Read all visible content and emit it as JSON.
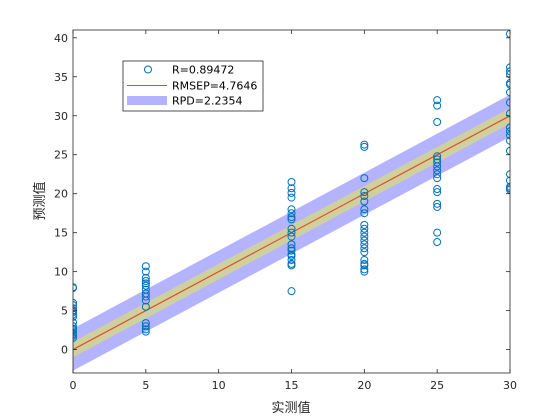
{
  "chart_data": {
    "type": "scatter",
    "xlabel": "实测值",
    "ylabel": "预测值",
    "xlim": [
      0,
      30
    ],
    "ylim": [
      -3,
      41
    ],
    "xticks": [
      0,
      5,
      10,
      15,
      20,
      25,
      30
    ],
    "yticks": [
      0,
      5,
      10,
      15,
      20,
      25,
      30,
      35,
      40
    ],
    "grid": false,
    "legend_placement": "top-left",
    "legend": [
      {
        "label": "R=0.89472",
        "kind": "marker"
      },
      {
        "label": "RMSEP=4.7646",
        "kind": "line"
      },
      {
        "label": "RPD=2.2354",
        "kind": "band"
      }
    ],
    "fit_line": {
      "x": [
        0,
        30
      ],
      "y": [
        0,
        30
      ],
      "color": "#d95319"
    },
    "band_outer": {
      "halfwidth": 2.7,
      "color": "#b3b3ff"
    },
    "band_inner": {
      "halfwidth": 1.0,
      "color": "#cfcfa0"
    },
    "marker_color": "#0072bd",
    "points": {
      "x": [
        0,
        0,
        0,
        0,
        0,
        0,
        0,
        0,
        0,
        0,
        0,
        0,
        0,
        0,
        0,
        0,
        0,
        5,
        5,
        5,
        5,
        5,
        5,
        5,
        5,
        5,
        5,
        5,
        5,
        5,
        5,
        5,
        15,
        15,
        15,
        15,
        15,
        15,
        15,
        15,
        15,
        15,
        15,
        15,
        15,
        15,
        15,
        15,
        15,
        15,
        15,
        15,
        20,
        20,
        20,
        20,
        20,
        20,
        20,
        20,
        20,
        20,
        20,
        20,
        20,
        20,
        20,
        20,
        20,
        20,
        20,
        20,
        20,
        25,
        25,
        25,
        25,
        25,
        25,
        25,
        25,
        25,
        25,
        25,
        25,
        25,
        25,
        25,
        25,
        30,
        30,
        30,
        30,
        30,
        30,
        30,
        30,
        30,
        30,
        30,
        30,
        30,
        30,
        30,
        30,
        30,
        30,
        30
      ],
      "y": [
        8.0,
        7.9,
        6.0,
        5.7,
        5.3,
        5.0,
        4.8,
        4.5,
        4.2,
        3.5,
        3.0,
        2.7,
        2.5,
        2.2,
        2.0,
        1.8,
        1.5,
        10.7,
        10.0,
        9.2,
        8.8,
        8.5,
        8.2,
        7.7,
        7.2,
        6.8,
        6.3,
        5.5,
        3.4,
        3.0,
        2.6,
        2.3,
        21.5,
        20.7,
        20.1,
        19.5,
        18.0,
        17.5,
        17.0,
        16.7,
        15.5,
        15.0,
        14.5,
        13.5,
        13.0,
        12.7,
        12.2,
        12.0,
        11.5,
        11.0,
        10.8,
        7.5,
        26.3,
        26.0,
        22.0,
        20.2,
        19.7,
        19.0,
        18.0,
        17.5,
        16.0,
        15.5,
        15.0,
        14.5,
        14.0,
        13.5,
        13.0,
        12.5,
        11.5,
        11.0,
        10.8,
        10.3,
        10.0,
        32.0,
        31.3,
        29.2,
        24.8,
        24.4,
        24.0,
        23.5,
        23.0,
        22.5,
        22.0,
        20.6,
        20.2,
        18.7,
        18.3,
        15.0,
        13.8,
        40.5,
        36.2,
        35.7,
        35.3,
        34.2,
        34.0,
        33.0,
        31.7,
        30.3,
        28.5,
        28.0,
        27.5,
        26.8,
        25.5,
        22.5,
        21.7,
        20.9,
        20.7,
        20.5
      ]
    }
  }
}
